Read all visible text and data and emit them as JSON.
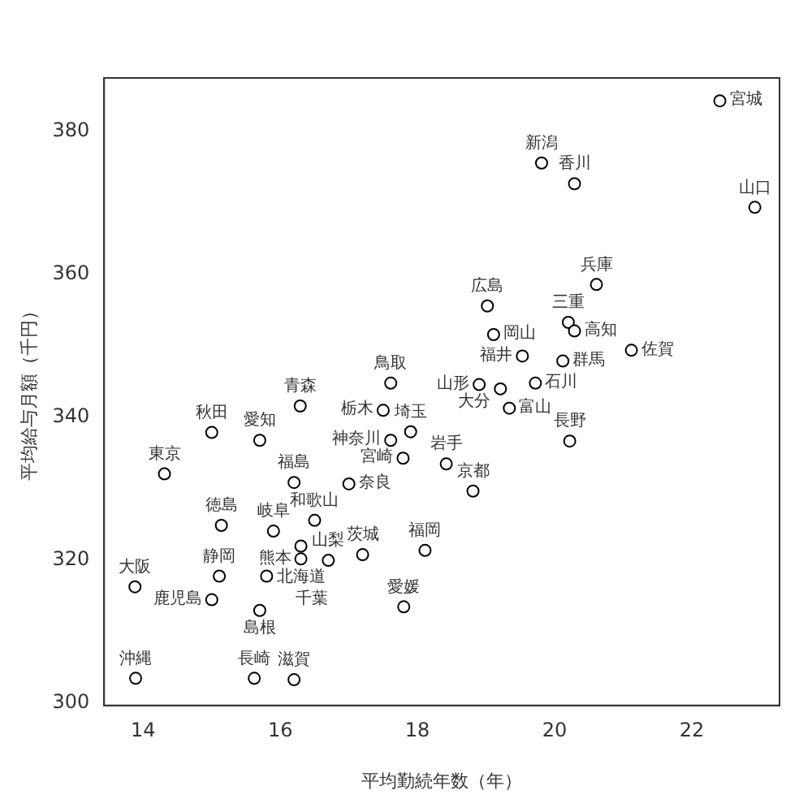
{
  "chart_data": {
    "type": "scatter",
    "xlabel": "平均勤続年数（年）",
    "ylabel": "平均給与月額（千円）",
    "xlim": [
      13.43,
      23.28
    ],
    "ylim": [
      299.7,
      387.5
    ],
    "xticks": [
      14,
      16,
      18,
      20,
      22
    ],
    "yticks": [
      300,
      320,
      340,
      360,
      380
    ],
    "grid": false,
    "marker": "circle",
    "legend": false,
    "series": [
      {
        "color": "#000000",
        "x": [
          22.41,
          19.81,
          20.29,
          22.92,
          20.61,
          19.02,
          20.2,
          20.29,
          19.11,
          19.53,
          21.12,
          20.12,
          18.9,
          19.21,
          19.72,
          19.34,
          20.22,
          18.42,
          18.81,
          17.9,
          17.5,
          18.11,
          17.61,
          16.29,
          15.0,
          15.7,
          17.61,
          17.79,
          14.31,
          16.2,
          17.0,
          16.5,
          15.14,
          15.9,
          16.3,
          17.2,
          16.3,
          16.7,
          15.11,
          15.8,
          13.88,
          15.0,
          15.7,
          17.8,
          13.89,
          15.62,
          16.2
        ],
        "values": [
          384.3,
          375.6,
          372.7,
          369.4,
          358.6,
          355.6,
          353.3,
          352.1,
          351.6,
          348.6,
          349.4,
          347.9,
          344.6,
          344.0,
          344.8,
          341.3,
          336.7,
          333.5,
          329.7,
          338.0,
          341.0,
          321.4,
          344.8,
          341.6,
          337.9,
          336.8,
          336.8,
          334.3,
          332.1,
          330.9,
          330.7,
          325.6,
          324.9,
          324.1,
          322.0,
          320.8,
          320.2,
          320.0,
          317.8,
          317.8,
          316.3,
          314.5,
          313.0,
          313.5,
          303.5,
          303.5,
          303.3
        ]
      }
    ],
    "annotations": [
      {
        "text": "宮城",
        "x": 22.41,
        "y": 384.3
      },
      {
        "text": "新潟",
        "x": 19.81,
        "y": 375.6
      },
      {
        "text": "香川",
        "x": 20.29,
        "y": 372.7
      },
      {
        "text": "山口",
        "x": 22.92,
        "y": 369.4
      },
      {
        "text": "兵庫",
        "x": 20.61,
        "y": 358.6
      },
      {
        "text": "広島",
        "x": 19.02,
        "y": 355.6
      },
      {
        "text": "三重",
        "x": 20.2,
        "y": 353.3
      },
      {
        "text": "高知",
        "x": 20.29,
        "y": 352.1
      },
      {
        "text": "岡山",
        "x": 19.11,
        "y": 351.6
      },
      {
        "text": "福井",
        "x": 19.53,
        "y": 348.6
      },
      {
        "text": "佐賀",
        "x": 21.12,
        "y": 349.4
      },
      {
        "text": "群馬",
        "x": 20.12,
        "y": 347.9
      },
      {
        "text": "山形",
        "x": 18.9,
        "y": 344.6
      },
      {
        "text": "大分",
        "x": 19.21,
        "y": 344.0
      },
      {
        "text": "石川",
        "x": 19.72,
        "y": 344.8
      },
      {
        "text": "富山",
        "x": 19.34,
        "y": 341.3
      },
      {
        "text": "長野",
        "x": 20.22,
        "y": 336.7
      },
      {
        "text": "岩手",
        "x": 18.42,
        "y": 333.5
      },
      {
        "text": "京都",
        "x": 18.81,
        "y": 329.7
      },
      {
        "text": "埼玉",
        "x": 17.9,
        "y": 338.0
      },
      {
        "text": "栃木",
        "x": 17.5,
        "y": 341.0
      },
      {
        "text": "福岡",
        "x": 18.11,
        "y": 321.4
      },
      {
        "text": "鳥取",
        "x": 17.61,
        "y": 344.8
      },
      {
        "text": "青森",
        "x": 16.29,
        "y": 341.6
      },
      {
        "text": "秋田",
        "x": 15.0,
        "y": 337.9
      },
      {
        "text": "愛知",
        "x": 15.7,
        "y": 336.8
      },
      {
        "text": "神奈川",
        "x": 17.61,
        "y": 336.8
      },
      {
        "text": "宮崎",
        "x": 17.79,
        "y": 334.3
      },
      {
        "text": "東京",
        "x": 14.31,
        "y": 332.1
      },
      {
        "text": "福島",
        "x": 16.2,
        "y": 330.9
      },
      {
        "text": "奈良",
        "x": 17.0,
        "y": 330.7
      },
      {
        "text": "和歌山",
        "x": 16.5,
        "y": 325.6
      },
      {
        "text": "徳島",
        "x": 15.14,
        "y": 324.9
      },
      {
        "text": "岐阜",
        "x": 15.9,
        "y": 324.1
      },
      {
        "text": "北海道",
        "x": 16.3,
        "y": 322.0
      },
      {
        "text": "茨城",
        "x": 17.2,
        "y": 320.8
      },
      {
        "text": "熊本",
        "x": 16.3,
        "y": 320.2
      },
      {
        "text": "山梨",
        "x": 16.7,
        "y": 320.0
      },
      {
        "text": "静岡",
        "x": 15.11,
        "y": 317.8
      },
      {
        "text": "千葉",
        "x": 15.8,
        "y": 317.8
      },
      {
        "text": "大阪",
        "x": 13.88,
        "y": 316.3
      },
      {
        "text": "鹿児島",
        "x": 15.0,
        "y": 314.5
      },
      {
        "text": "島根",
        "x": 15.7,
        "y": 313.0
      },
      {
        "text": "愛媛",
        "x": 17.8,
        "y": 313.5
      },
      {
        "text": "沖縄",
        "x": 13.89,
        "y": 303.5
      },
      {
        "text": "長崎",
        "x": 15.62,
        "y": 303.5
      },
      {
        "text": "滋賀",
        "x": 16.2,
        "y": 303.3
      }
    ]
  }
}
